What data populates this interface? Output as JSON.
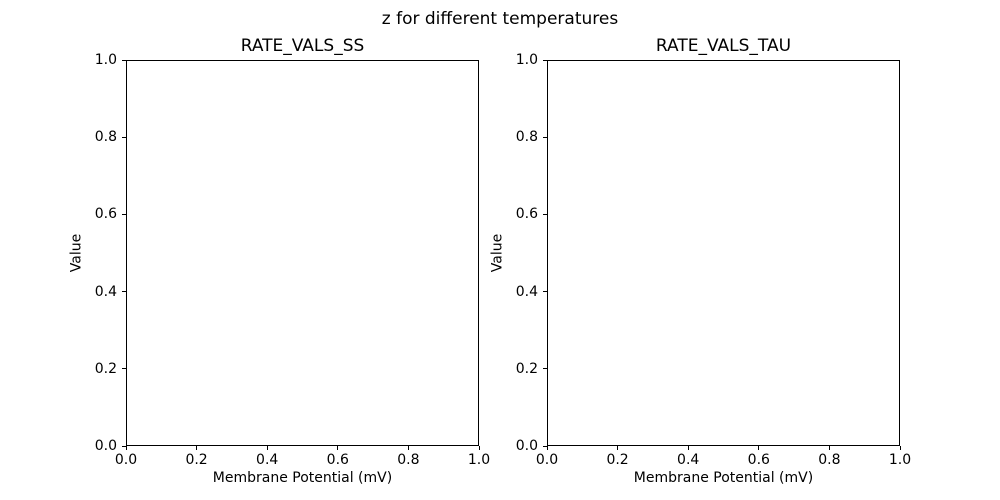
{
  "figure": {
    "suptitle": "z for different temperatures",
    "background_color": "#ffffff",
    "text_color": "#000000",
    "spine_color": "#000000"
  },
  "chart_data": [
    {
      "type": "line",
      "title": "RATE_VALS_SS",
      "xlabel": "Membrane Potential (mV)",
      "ylabel": "Value",
      "xlim": [
        0.0,
        1.0
      ],
      "ylim": [
        0.0,
        1.0
      ],
      "xticks": [
        0.0,
        0.2,
        0.4,
        0.6,
        0.8,
        1.0
      ],
      "yticks": [
        0.0,
        0.2,
        0.4,
        0.6,
        0.8,
        1.0
      ],
      "grid": false,
      "legend": false,
      "series": []
    },
    {
      "type": "line",
      "title": "RATE_VALS_TAU",
      "xlabel": "Membrane Potential (mV)",
      "ylabel": "Value",
      "xlim": [
        0.0,
        1.0
      ],
      "ylim": [
        0.0,
        1.0
      ],
      "xticks": [
        0.0,
        0.2,
        0.4,
        0.6,
        0.8,
        1.0
      ],
      "yticks": [
        0.0,
        0.2,
        0.4,
        0.6,
        0.8,
        1.0
      ],
      "grid": false,
      "legend": false,
      "series": []
    }
  ]
}
